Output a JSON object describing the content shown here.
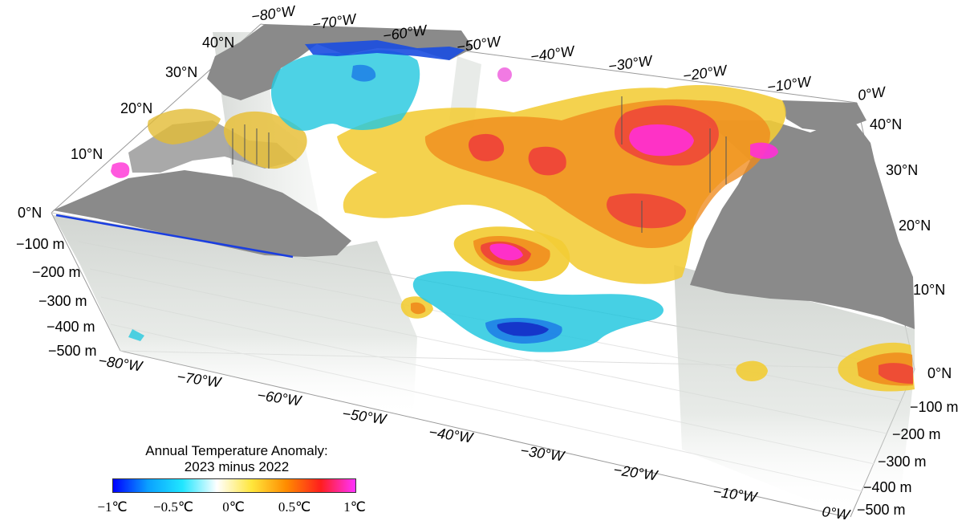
{
  "colorbar": {
    "title_line1": "Annual Temperature Anomaly:",
    "title_line2": "2023 minus 2022",
    "ticks": [
      "−1℃",
      "−0.5℃",
      "0℃",
      "0.5℃",
      "1℃"
    ],
    "colors": [
      "#0000ff",
      "#0aa0ff",
      "#20e6ff",
      "#ffffff",
      "#ffe63c",
      "#ff8c00",
      "#ff1e1e",
      "#ff32ff"
    ]
  },
  "axes": {
    "top_longitudes": [
      "−80°W",
      "−70°W",
      "−60°W",
      "−50°W",
      "−40°W",
      "−30°W",
      "−20°W",
      "−10°W",
      "0°W"
    ],
    "bottom_longitudes": [
      "−80°W",
      "−70°W",
      "−60°W",
      "−50°W",
      "−40°W",
      "−30°W",
      "−20°W",
      "−10°W",
      "0°W"
    ],
    "left_latitudes": [
      "40°N",
      "30°N",
      "20°N",
      "10°N",
      "0°N"
    ],
    "right_latitudes": [
      "40°N",
      "30°N",
      "20°N",
      "10°N",
      "0°N"
    ],
    "left_depths": [
      "−100 m",
      "−200 m",
      "−300 m",
      "−400 m",
      "−500 m"
    ],
    "right_depths": [
      "−100 m",
      "−200 m",
      "−300 m",
      "−400 m",
      "−500 m"
    ]
  },
  "map": {
    "land_color": "#8a8a8a",
    "domain": "Tropical and subtropical North Atlantic, 80°W–0°W, 0°N–45°N, 0–500 m depth"
  }
}
